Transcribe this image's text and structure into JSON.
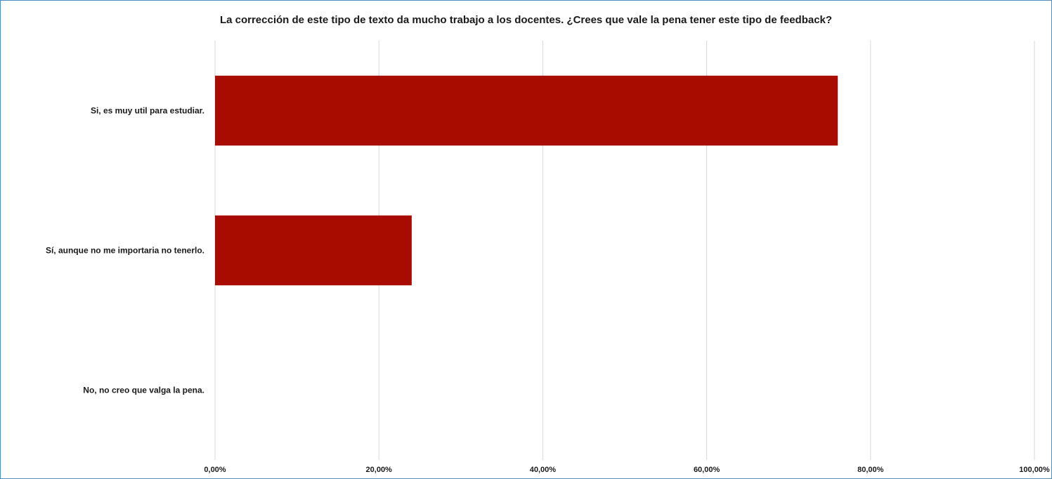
{
  "chart_data": {
    "type": "bar",
    "orientation": "horizontal",
    "title": "La corrección de este tipo de texto da mucho trabajo a los docentes. ¿Crees que vale la pena tener este tipo de feedback?",
    "categories": [
      "Si, es muy util para estudiar.",
      "Sí, aunque no me importaria no tenerlo.",
      "No, no creo que valga la pena."
    ],
    "values": [
      0.76,
      0.24,
      0.0
    ],
    "xlim": [
      0,
      1
    ],
    "x_ticks": [
      0,
      0.2,
      0.4,
      0.6,
      0.8,
      1.0
    ],
    "x_tick_labels": [
      "0,00%",
      "20,00%",
      "40,00%",
      "60,00%",
      "80,00%",
      "100,00%"
    ],
    "grid": true,
    "bar_color": "#a80c00",
    "grid_color": "#d9d9d9",
    "frame_color": "#4f8fbf"
  }
}
